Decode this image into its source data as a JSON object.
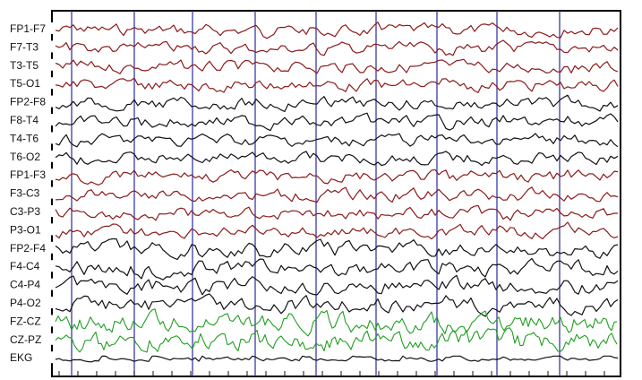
{
  "chart_data": {
    "type": "line",
    "channels": [
      {
        "label": "FP1-F7",
        "color": "#8b1a1a"
      },
      {
        "label": "F7-T3",
        "color": "#8b1a1a"
      },
      {
        "label": "T3-T5",
        "color": "#8b1a1a"
      },
      {
        "label": "T5-O1",
        "color": "#8b1a1a"
      },
      {
        "label": "FP2-F8",
        "color": "#111111"
      },
      {
        "label": "F8-T4",
        "color": "#111111"
      },
      {
        "label": "T4-T6",
        "color": "#111111"
      },
      {
        "label": "T6-O2",
        "color": "#111111"
      },
      {
        "label": "FP1-F3",
        "color": "#8b1a1a"
      },
      {
        "label": "F3-C3",
        "color": "#8b1a1a"
      },
      {
        "label": "C3-P3",
        "color": "#8b1a1a"
      },
      {
        "label": "P3-O1",
        "color": "#8b1a1a"
      },
      {
        "label": "FP2-F4",
        "color": "#111111"
      },
      {
        "label": "F4-C4",
        "color": "#111111"
      },
      {
        "label": "C4-P4",
        "color": "#111111"
      },
      {
        "label": "P4-O2",
        "color": "#111111"
      },
      {
        "label": "FZ-CZ",
        "color": "#1f9e1f"
      },
      {
        "label": "CZ-PZ",
        "color": "#1f9e1f"
      },
      {
        "label": "EKG",
        "color": "#111111"
      }
    ],
    "vertical_markers": 9,
    "marker_color": "#3a3aa8",
    "grid": false
  }
}
